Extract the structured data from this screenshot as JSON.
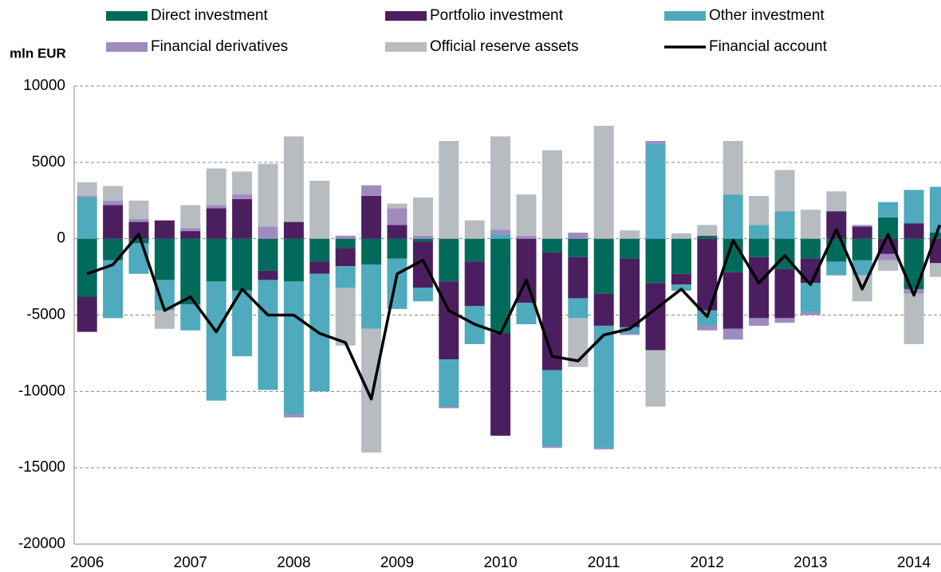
{
  "chart_data": {
    "type": "bar",
    "y_label": "mln EUR",
    "categories": [
      "2006",
      null,
      null,
      null,
      "2007",
      null,
      null,
      null,
      "2008",
      null,
      null,
      null,
      "2009",
      null,
      null,
      null,
      "2010",
      null,
      null,
      null,
      "2011",
      null,
      null,
      null,
      "2012",
      null,
      null,
      null,
      "2013",
      null,
      null,
      null,
      "2014",
      null
    ],
    "series": [
      {
        "name": "Direct investment",
        "type": "bar",
        "color": "#006b5b",
        "values": [
          -3800,
          -1400,
          -300,
          -2700,
          -4300,
          -2800,
          -3400,
          -2100,
          -2800,
          -1500,
          -600,
          -1700,
          -1300,
          -200,
          -2800,
          -1500,
          -6200,
          0,
          -900,
          -1200,
          -3600,
          -1300,
          -2900,
          -2300,
          200,
          -2200,
          -1200,
          -2000,
          -1300,
          -1500,
          -1400,
          1400,
          -3300,
          400
        ]
      },
      {
        "name": "Portfolio investment",
        "type": "bar",
        "color": "#4b1f5f",
        "values": [
          -2300,
          2200,
          1100,
          1200,
          500,
          2000,
          2600,
          -600,
          1100,
          -800,
          -1200,
          2800,
          900,
          -3000,
          -5100,
          -2900,
          -6700,
          -4200,
          -7700,
          -2700,
          -2100,
          -4500,
          -4400,
          -700,
          -4700,
          -3700,
          -4000,
          -3200,
          -1600,
          1800,
          800,
          -1000,
          1000,
          -1600
        ]
      },
      {
        "name": "Other investment",
        "type": "bar",
        "color": "#4faabd",
        "values": [
          2700,
          -3800,
          -2000,
          -2000,
          -1700,
          -7800,
          -4300,
          -7200,
          -8700,
          -7700,
          -1400,
          -4200,
          -3300,
          -900,
          -3100,
          -2500,
          300,
          -1400,
          -5000,
          -1300,
          -8000,
          -400,
          6200,
          -400,
          -1000,
          2900,
          900,
          1800,
          -1900,
          -900,
          -1000,
          1000,
          2200,
          3000
        ]
      },
      {
        "name": "Financial derivatives",
        "type": "bar",
        "color": "#a08bc1",
        "values": [
          100,
          300,
          200,
          0,
          200,
          200,
          300,
          800,
          -200,
          0,
          200,
          700,
          1100,
          200,
          -100,
          0,
          300,
          200,
          -100,
          400,
          -100,
          -100,
          200,
          0,
          -300,
          -700,
          -500,
          -300,
          -200,
          0,
          100,
          -400,
          -300,
          0
        ]
      },
      {
        "name": "Official reserve assets",
        "type": "bar",
        "color": "#b7bcc0",
        "values": [
          900,
          950,
          1200,
          -1200,
          1500,
          2400,
          1500,
          4100,
          5600,
          3800,
          -3800,
          -8100,
          300,
          2500,
          6400,
          1200,
          6100,
          2700,
          5800,
          -3200,
          7400,
          550,
          -3700,
          350,
          700,
          3500,
          1900,
          2700,
          1900,
          1300,
          -1700,
          -700,
          -3300,
          -900
        ]
      },
      {
        "name": "Financial account",
        "type": "line",
        "color": "#000000",
        "values": [
          -2300,
          -1700,
          300,
          -4700,
          -3800,
          -6100,
          -3300,
          -5000,
          -5000,
          -6200,
          -6800,
          -10500,
          -2300,
          -1400,
          -4700,
          -5600,
          -6200,
          -2700,
          -7700,
          -8000,
          -6300,
          -5900,
          -4600,
          -3300,
          -5100,
          -100,
          -2900,
          -1100,
          -3000,
          600,
          -3300,
          300,
          -3700,
          900
        ]
      }
    ],
    "ylim": [
      -20000,
      10000
    ],
    "yticks": [
      -20000,
      -15000,
      -10000,
      -5000,
      0,
      5000,
      10000
    ],
    "grid": true
  }
}
